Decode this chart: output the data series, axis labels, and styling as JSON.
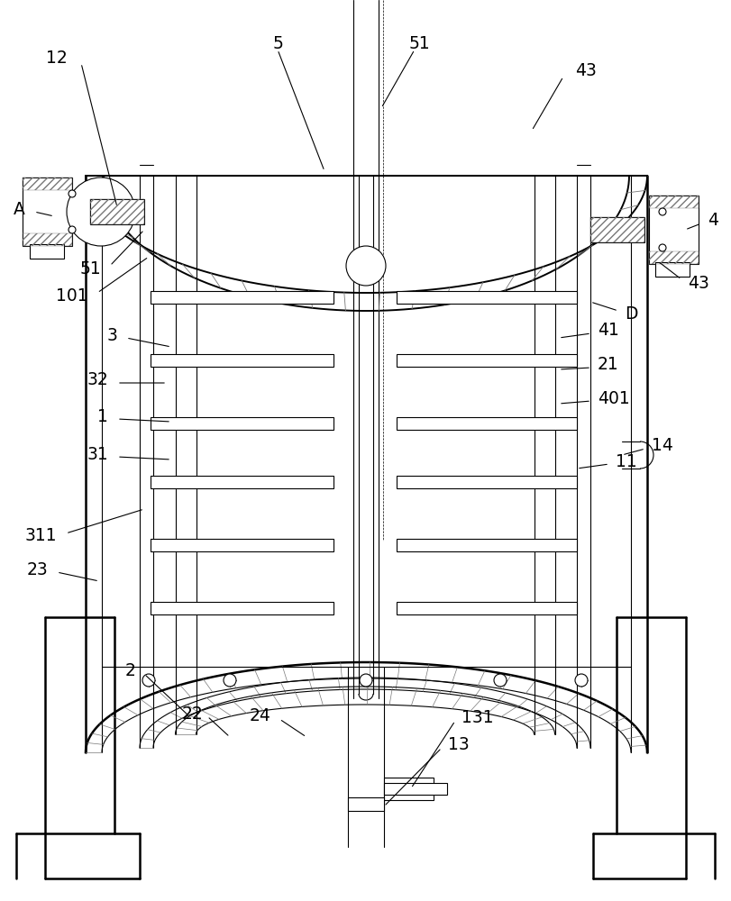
{
  "bg_color": "#ffffff",
  "line_color": "#000000",
  "fig_width": 8.11,
  "fig_height": 10.0
}
